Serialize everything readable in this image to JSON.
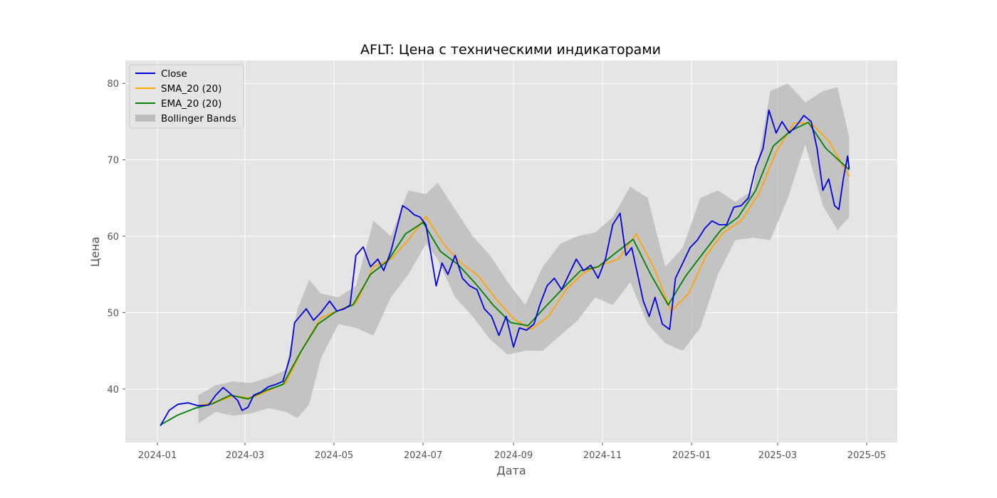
{
  "chart_data": {
    "type": "line",
    "title": "AFLT: Цена с техническими индикаторами",
    "xlabel": "Дата",
    "ylabel": "Цена",
    "grid": true,
    "legend_position": "top-left",
    "xlim": [
      "2023-12-10",
      "2025-05-22"
    ],
    "ylim": [
      33,
      83
    ],
    "x_ticks": [
      "2024-01",
      "2024-03",
      "2024-05",
      "2024-07",
      "2024-09",
      "2024-11",
      "2025-01",
      "2025-03",
      "2025-05"
    ],
    "y_ticks": [
      40,
      50,
      60,
      70,
      80
    ],
    "colors": {
      "background": "#e5e5e5",
      "grid": "#ffffff",
      "close": "#0000dd",
      "sma": "#ffa500",
      "ema": "#008000",
      "band": "#bdbdbd"
    },
    "series": [
      {
        "name": "Close",
        "kind": "line",
        "points": [
          [
            "2024-01-03",
            35.2
          ],
          [
            "2024-01-09",
            37.2
          ],
          [
            "2024-01-15",
            38.0
          ],
          [
            "2024-01-22",
            38.2
          ],
          [
            "2024-01-29",
            37.8
          ],
          [
            "2024-02-05",
            37.9
          ],
          [
            "2024-02-10",
            39.2
          ],
          [
            "2024-02-15",
            40.2
          ],
          [
            "2024-02-20",
            39.4
          ],
          [
            "2024-02-25",
            38.5
          ],
          [
            "2024-02-28",
            37.2
          ],
          [
            "2024-03-03",
            37.6
          ],
          [
            "2024-03-07",
            39.2
          ],
          [
            "2024-03-12",
            39.6
          ],
          [
            "2024-03-17",
            40.3
          ],
          [
            "2024-03-22",
            40.6
          ],
          [
            "2024-03-27",
            41.0
          ],
          [
            "2024-04-01",
            44.3
          ],
          [
            "2024-04-04",
            48.7
          ],
          [
            "2024-04-08",
            49.6
          ],
          [
            "2024-04-12",
            50.5
          ],
          [
            "2024-04-17",
            49.0
          ],
          [
            "2024-04-22",
            50.0
          ],
          [
            "2024-04-28",
            51.5
          ],
          [
            "2024-05-03",
            50.2
          ],
          [
            "2024-05-08",
            50.5
          ],
          [
            "2024-05-12",
            51.0
          ],
          [
            "2024-05-16",
            57.5
          ],
          [
            "2024-05-21",
            58.6
          ],
          [
            "2024-05-26",
            56.0
          ],
          [
            "2024-05-31",
            57.0
          ],
          [
            "2024-06-04",
            55.5
          ],
          [
            "2024-06-09",
            58.0
          ],
          [
            "2024-06-13",
            61.0
          ],
          [
            "2024-06-17",
            64.0
          ],
          [
            "2024-06-21",
            63.5
          ],
          [
            "2024-06-25",
            62.8
          ],
          [
            "2024-06-29",
            62.5
          ],
          [
            "2024-07-03",
            61.5
          ],
          [
            "2024-07-07",
            57.0
          ],
          [
            "2024-07-10",
            53.5
          ],
          [
            "2024-07-14",
            56.5
          ],
          [
            "2024-07-18",
            55.0
          ],
          [
            "2024-07-23",
            57.5
          ],
          [
            "2024-07-28",
            54.5
          ],
          [
            "2024-08-02",
            53.5
          ],
          [
            "2024-08-07",
            53.0
          ],
          [
            "2024-08-12",
            50.5
          ],
          [
            "2024-08-17",
            49.5
          ],
          [
            "2024-08-22",
            47.0
          ],
          [
            "2024-08-27",
            49.5
          ],
          [
            "2024-09-01",
            45.5
          ],
          [
            "2024-09-05",
            48.0
          ],
          [
            "2024-09-10",
            47.7
          ],
          [
            "2024-09-15",
            48.5
          ],
          [
            "2024-09-19",
            51.0
          ],
          [
            "2024-09-24",
            53.5
          ],
          [
            "2024-09-29",
            54.5
          ],
          [
            "2024-10-04",
            53.0
          ],
          [
            "2024-10-09",
            55.0
          ],
          [
            "2024-10-14",
            57.0
          ],
          [
            "2024-10-19",
            55.5
          ],
          [
            "2024-10-24",
            56.2
          ],
          [
            "2024-10-29",
            54.5
          ],
          [
            "2024-11-03",
            57.0
          ],
          [
            "2024-11-08",
            61.5
          ],
          [
            "2024-11-13",
            63.0
          ],
          [
            "2024-11-17",
            57.5
          ],
          [
            "2024-11-21",
            58.5
          ],
          [
            "2024-11-25",
            55.0
          ],
          [
            "2024-11-29",
            51.5
          ],
          [
            "2024-12-03",
            49.5
          ],
          [
            "2024-12-07",
            52.0
          ],
          [
            "2024-12-12",
            48.5
          ],
          [
            "2024-12-17",
            47.8
          ],
          [
            "2024-12-21",
            54.5
          ],
          [
            "2024-12-26",
            56.5
          ],
          [
            "2024-12-31",
            58.5
          ],
          [
            "2025-01-05",
            59.5
          ],
          [
            "2025-01-10",
            61.0
          ],
          [
            "2025-01-15",
            62.0
          ],
          [
            "2025-01-20",
            61.5
          ],
          [
            "2025-01-25",
            61.5
          ],
          [
            "2025-01-30",
            63.8
          ],
          [
            "2025-02-04",
            64.0
          ],
          [
            "2025-02-09",
            65.0
          ],
          [
            "2025-02-14",
            69.0
          ],
          [
            "2025-02-19",
            71.5
          ],
          [
            "2025-02-23",
            76.5
          ],
          [
            "2025-02-28",
            73.5
          ],
          [
            "2025-03-04",
            75.0
          ],
          [
            "2025-03-09",
            73.5
          ],
          [
            "2025-03-14",
            74.5
          ],
          [
            "2025-03-19",
            75.8
          ],
          [
            "2025-03-24",
            75.0
          ],
          [
            "2025-03-28",
            71.5
          ],
          [
            "2025-04-01",
            66.0
          ],
          [
            "2025-04-05",
            67.5
          ],
          [
            "2025-04-09",
            64.0
          ],
          [
            "2025-04-12",
            63.5
          ],
          [
            "2025-04-15",
            67.5
          ],
          [
            "2025-04-18",
            70.5
          ],
          [
            "2025-04-19",
            68.8
          ]
        ]
      },
      {
        "name": "SMA_20 (20)",
        "kind": "line",
        "points": [
          [
            "2024-01-29",
            37.8
          ],
          [
            "2024-02-10",
            38.3
          ],
          [
            "2024-02-22",
            39.1
          ],
          [
            "2024-03-05",
            38.8
          ],
          [
            "2024-03-17",
            39.8
          ],
          [
            "2024-03-29",
            40.8
          ],
          [
            "2024-04-10",
            45.5
          ],
          [
            "2024-04-22",
            49.3
          ],
          [
            "2024-05-04",
            50.3
          ],
          [
            "2024-05-16",
            51.2
          ],
          [
            "2024-05-28",
            56.0
          ],
          [
            "2024-06-09",
            57.0
          ],
          [
            "2024-06-21",
            59.5
          ],
          [
            "2024-07-03",
            62.6
          ],
          [
            "2024-07-15",
            59.0
          ],
          [
            "2024-07-27",
            56.5
          ],
          [
            "2024-08-08",
            54.8
          ],
          [
            "2024-08-20",
            51.8
          ],
          [
            "2024-09-01",
            49.2
          ],
          [
            "2024-09-13",
            47.8
          ],
          [
            "2024-09-25",
            49.5
          ],
          [
            "2024-10-07",
            53.0
          ],
          [
            "2024-10-19",
            55.2
          ],
          [
            "2024-10-31",
            56.2
          ],
          [
            "2024-11-12",
            57.0
          ],
          [
            "2024-11-24",
            60.3
          ],
          [
            "2024-12-06",
            56.0
          ],
          [
            "2024-12-18",
            50.2
          ],
          [
            "2024-12-30",
            52.5
          ],
          [
            "2025-01-11",
            57.5
          ],
          [
            "2025-01-23",
            60.5
          ],
          [
            "2025-02-04",
            62.0
          ],
          [
            "2025-02-16",
            65.5
          ],
          [
            "2025-02-28",
            71.0
          ],
          [
            "2025-03-12",
            74.8
          ],
          [
            "2025-03-24",
            74.8
          ],
          [
            "2025-04-05",
            72.5
          ],
          [
            "2025-04-19",
            67.8
          ]
        ]
      },
      {
        "name": "EMA_20 (20)",
        "kind": "line",
        "points": [
          [
            "2024-01-03",
            35.3
          ],
          [
            "2024-01-15",
            36.6
          ],
          [
            "2024-01-27",
            37.5
          ],
          [
            "2024-02-08",
            38.1
          ],
          [
            "2024-02-20",
            39.2
          ],
          [
            "2024-03-03",
            38.7
          ],
          [
            "2024-03-15",
            39.8
          ],
          [
            "2024-03-27",
            40.6
          ],
          [
            "2024-04-08",
            44.8
          ],
          [
            "2024-04-20",
            48.5
          ],
          [
            "2024-05-02",
            50.1
          ],
          [
            "2024-05-14",
            51.0
          ],
          [
            "2024-05-26",
            55.0
          ],
          [
            "2024-06-07",
            56.8
          ],
          [
            "2024-06-19",
            60.3
          ],
          [
            "2024-07-01",
            61.8
          ],
          [
            "2024-07-13",
            58.0
          ],
          [
            "2024-07-25",
            56.3
          ],
          [
            "2024-08-06",
            53.8
          ],
          [
            "2024-08-18",
            51.0
          ],
          [
            "2024-08-30",
            48.7
          ],
          [
            "2024-09-11",
            48.3
          ],
          [
            "2024-09-23",
            50.8
          ],
          [
            "2024-10-05",
            53.2
          ],
          [
            "2024-10-17",
            55.5
          ],
          [
            "2024-10-29",
            56.0
          ],
          [
            "2024-11-10",
            57.8
          ],
          [
            "2024-11-22",
            59.6
          ],
          [
            "2024-12-04",
            55.0
          ],
          [
            "2024-12-16",
            51.0
          ],
          [
            "2024-12-28",
            54.8
          ],
          [
            "2025-01-09",
            57.8
          ],
          [
            "2025-01-21",
            60.8
          ],
          [
            "2025-02-02",
            62.5
          ],
          [
            "2025-02-14",
            66.0
          ],
          [
            "2025-02-26",
            71.8
          ],
          [
            "2025-03-10",
            73.8
          ],
          [
            "2025-03-22",
            74.9
          ],
          [
            "2025-04-03",
            71.5
          ],
          [
            "2025-04-19",
            68.7
          ]
        ]
      },
      {
        "name": "Bollinger Bands",
        "kind": "band",
        "points": [
          [
            "2024-01-29",
            35.5,
            39.2
          ],
          [
            "2024-02-10",
            37.0,
            40.5
          ],
          [
            "2024-02-22",
            36.5,
            41.0
          ],
          [
            "2024-03-05",
            36.8,
            40.8
          ],
          [
            "2024-03-17",
            37.5,
            41.5
          ],
          [
            "2024-03-29",
            37.0,
            42.5
          ],
          [
            "2024-04-06",
            36.2,
            50.5
          ],
          [
            "2024-04-14",
            38.0,
            54.3
          ],
          [
            "2024-04-22",
            44.0,
            52.5
          ],
          [
            "2024-05-04",
            48.5,
            52.0
          ],
          [
            "2024-05-16",
            48.0,
            53.5
          ],
          [
            "2024-05-28",
            47.0,
            62.0
          ],
          [
            "2024-06-09",
            52.0,
            60.0
          ],
          [
            "2024-06-21",
            55.0,
            66.0
          ],
          [
            "2024-07-03",
            59.0,
            65.5
          ],
          [
            "2024-07-11",
            57.0,
            67.0
          ],
          [
            "2024-07-23",
            52.0,
            63.5
          ],
          [
            "2024-08-04",
            49.5,
            60.0
          ],
          [
            "2024-08-16",
            46.5,
            57.5
          ],
          [
            "2024-08-28",
            44.5,
            54.0
          ],
          [
            "2024-09-09",
            45.0,
            51.0
          ],
          [
            "2024-09-21",
            45.0,
            56.0
          ],
          [
            "2024-10-03",
            47.0,
            59.0
          ],
          [
            "2024-10-15",
            49.0,
            60.0
          ],
          [
            "2024-10-27",
            52.0,
            60.5
          ],
          [
            "2024-11-08",
            51.0,
            62.5
          ],
          [
            "2024-11-20",
            54.0,
            66.5
          ],
          [
            "2024-12-02",
            48.5,
            65.0
          ],
          [
            "2024-12-14",
            46.0,
            56.0
          ],
          [
            "2024-12-26",
            45.0,
            58.5
          ],
          [
            "2025-01-07",
            48.0,
            65.0
          ],
          [
            "2025-01-19",
            55.0,
            66.0
          ],
          [
            "2025-01-31",
            59.5,
            64.5
          ],
          [
            "2025-02-12",
            59.8,
            66.0
          ],
          [
            "2025-02-24",
            59.5,
            79.0
          ],
          [
            "2025-03-08",
            65.0,
            80.0
          ],
          [
            "2025-03-20",
            72.0,
            77.5
          ],
          [
            "2025-04-01",
            64.0,
            79.0
          ],
          [
            "2025-04-11",
            60.8,
            79.5
          ],
          [
            "2025-04-19",
            62.5,
            73.0
          ]
        ]
      }
    ]
  }
}
